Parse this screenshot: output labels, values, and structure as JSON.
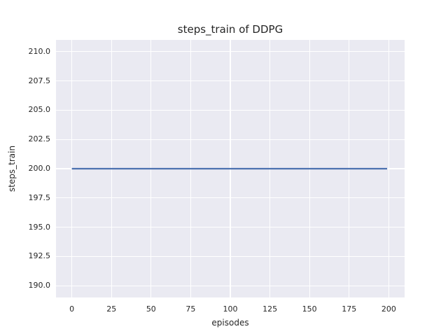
{
  "chart_data": {
    "type": "line",
    "title": "steps_train of DDPG",
    "xlabel": "episodes",
    "ylabel": "steps_train",
    "xlim": [
      -10,
      210
    ],
    "ylim": [
      189,
      211
    ],
    "xtick_values": [
      0,
      25,
      50,
      75,
      100,
      125,
      150,
      175,
      200
    ],
    "xtick_labels": [
      "0",
      "25",
      "50",
      "75",
      "100",
      "125",
      "150",
      "175",
      "200"
    ],
    "ytick_values": [
      190,
      192.5,
      195,
      197.5,
      200,
      202.5,
      205,
      207.5,
      210
    ],
    "ytick_labels": [
      "190.0",
      "192.5",
      "195.0",
      "197.5",
      "200.0",
      "202.5",
      "205.0",
      "207.5",
      "210.0"
    ],
    "grid": true,
    "legend": null,
    "style": "seaborn-darkgrid",
    "series": [
      {
        "name": "steps_train",
        "x": [
          0,
          199
        ],
        "y": [
          200,
          200
        ],
        "color": "#4c72b0",
        "line_width": 2.3,
        "note": "constant value 200 across all episodes 0-199"
      }
    ],
    "colors": {
      "figure_background": "#ffffff",
      "plot_background": "#eaeaf2",
      "gridline": "#ffffff",
      "line": "#4c72b0",
      "text": "#262626"
    }
  }
}
